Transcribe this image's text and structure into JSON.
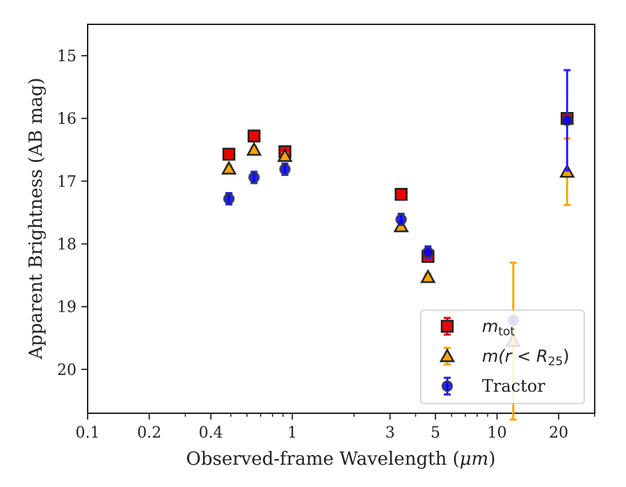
{
  "chart_data": {
    "type": "scatter",
    "xlabel_prefix": "Observed-frame Wavelength (",
    "xlabel_unit": "μm",
    "xlabel_suffix": ")",
    "ylabel": "Apparent Brightness (AB mag)",
    "xscale": "log",
    "xlim": [
      0.1,
      30
    ],
    "ylim": [
      20.7,
      14.5
    ],
    "y_inverted": true,
    "grid": false,
    "legend_position": "lower-right",
    "x_ticks": [
      0.1,
      0.2,
      0.4,
      1,
      3,
      5,
      10,
      20
    ],
    "x_tick_labels": [
      "0.1",
      "0.2",
      "0.4",
      "1",
      "3",
      "5",
      "10",
      "20"
    ],
    "y_ticks": [
      15,
      16,
      17,
      18,
      19,
      20
    ],
    "y_tick_labels": [
      "15",
      "16",
      "17",
      "18",
      "19",
      "20"
    ],
    "series": [
      {
        "name": "m_tot",
        "legend_main": "m",
        "legend_sub": "tot",
        "marker": "square",
        "color": "#ee0000",
        "error_color": "#ee0000",
        "points": [
          {
            "x": 0.49,
            "y": 16.57,
            "err": 0.06
          },
          {
            "x": 0.65,
            "y": 16.28,
            "err": 0.06
          },
          {
            "x": 0.92,
            "y": 16.53,
            "err": 0.06
          },
          {
            "x": 3.4,
            "y": 17.21,
            "err": 0.06
          },
          {
            "x": 4.6,
            "y": 18.2,
            "err": 0.07
          },
          {
            "x": 22,
            "y": 16.0,
            "err": 0.06
          }
        ]
      },
      {
        "name": "m(r < R25)",
        "legend_main": "m(r < R",
        "legend_sub": "25",
        "legend_close": ")",
        "marker": "triangle",
        "color": "#ffa500",
        "error_color": "#ffa500",
        "points": [
          {
            "x": 0.49,
            "y": 16.8,
            "err": 0.05
          },
          {
            "x": 0.65,
            "y": 16.5,
            "err": 0.05
          },
          {
            "x": 0.92,
            "y": 16.6,
            "err": 0.05
          },
          {
            "x": 3.4,
            "y": 17.72,
            "err": 0.05
          },
          {
            "x": 4.6,
            "y": 18.53,
            "err": 0.05
          },
          {
            "x": 12,
            "y": 19.55,
            "err": 1.25
          },
          {
            "x": 22,
            "y": 16.85,
            "err": 0.53
          }
        ]
      },
      {
        "name": "Tractor",
        "legend_main": "Tractor",
        "marker": "circle",
        "color": "#0000ee",
        "error_color": "#2222ff",
        "points": [
          {
            "x": 0.49,
            "y": 17.28,
            "err": 0.09
          },
          {
            "x": 0.65,
            "y": 16.94,
            "err": 0.09
          },
          {
            "x": 0.92,
            "y": 16.81,
            "err": 0.09
          },
          {
            "x": 3.4,
            "y": 17.61,
            "err": 0.09
          },
          {
            "x": 4.6,
            "y": 18.13,
            "err": 0.09
          },
          {
            "x": 12,
            "y": 19.22,
            "err": 0.0
          },
          {
            "x": 22,
            "y": 16.03,
            "err": 0.8
          }
        ]
      }
    ]
  }
}
